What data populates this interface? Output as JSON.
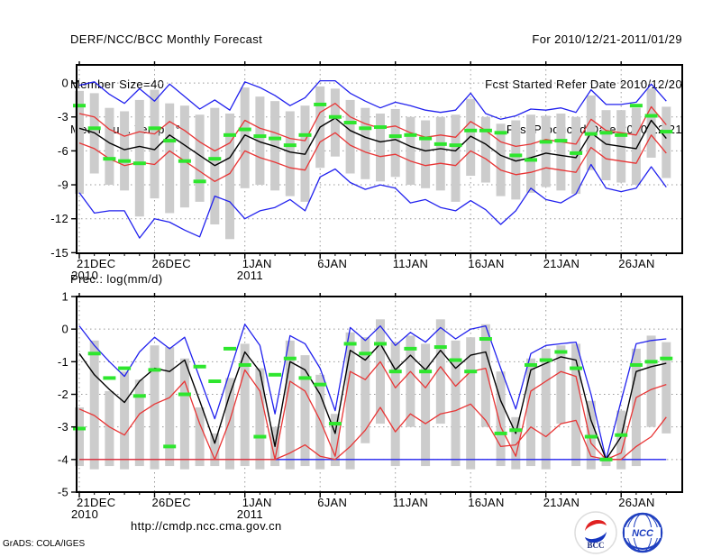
{
  "header": {
    "title": "DERF/NCC/BCC Monthly Forecast",
    "member_size": "Member Size=40",
    "temp_label": "Mean Surf. Temp.: °C",
    "for_period": "For 2010/12/21-2011/01/29",
    "fcst_start": "Fcst Started Refer Date 2010/12/20",
    "fcst_produced": "Fcst Produced Date 2010/12/21"
  },
  "precip_label": "Prec.: log(mm/d)",
  "footer": {
    "url": "http://cmdp.ncc.cma.gov.cn",
    "credit": "GrADS: COLA/IGES",
    "logo_bcc_text": "BCC",
    "logo_ncc_text": "NCC"
  },
  "colors": {
    "blue": "#2222ee",
    "red": "#e83535",
    "green": "#2ee62e",
    "black": "#000000",
    "gray": "#cccccc",
    "grid": "#999999",
    "text": "#000000",
    "logo_blue": "#2040c0",
    "logo_red": "#e02020"
  },
  "chart_data": [
    {
      "type": "line",
      "title": "Mean Surf. Temp.: °C",
      "ylabel": "°C",
      "n_points": 40,
      "ylim": [
        -15.05,
        1.6
      ],
      "y_ticks": [
        0,
        -3,
        -6,
        -9,
        -12,
        -15
      ],
      "grid": true,
      "x_ticks": [
        {
          "day": 0,
          "label": "21DEC",
          "year": "2010"
        },
        {
          "day": 5,
          "label": "26DEC"
        },
        {
          "day": 11,
          "label": "1JAN",
          "year": "2011"
        },
        {
          "day": 16,
          "label": "6JAN"
        },
        {
          "day": 21,
          "label": "11JAN"
        },
        {
          "day": 26,
          "label": "16JAN"
        },
        {
          "day": 31,
          "label": "21JAN"
        },
        {
          "day": 36,
          "label": "26JAN"
        }
      ],
      "bars": {
        "name": "member-spread",
        "color_key": "gray",
        "top": [
          -0.7,
          -0.9,
          -2.2,
          -2.5,
          -1.5,
          -0.6,
          -1.8,
          -2.0,
          -2.8,
          -2.2,
          -2.7,
          -0.4,
          -1.2,
          -1.6,
          -2.5,
          -2.0,
          -0.3,
          -0.5,
          -1.5,
          -2.2,
          -2.7,
          -2.3,
          -3.0,
          -3.3,
          -3.0,
          -2.8,
          -1.4,
          -3.0,
          -3.6,
          -3.3,
          -2.8,
          -2.9,
          -2.7,
          -3.0,
          -1.1,
          -2.4,
          -2.4,
          -2.2,
          -0.5,
          -2.1
        ],
        "bottom": [
          -9.8,
          -8.0,
          -9.0,
          -9.5,
          -11.8,
          -10.2,
          -11.5,
          -11.0,
          -10.5,
          -12.5,
          -13.8,
          -9.3,
          -9.0,
          -9.5,
          -10.0,
          -10.5,
          -7.5,
          -6.5,
          -8.0,
          -8.5,
          -8.7,
          -8.3,
          -9.0,
          -9.3,
          -9.5,
          -10.5,
          -8.2,
          -8.8,
          -10.0,
          -10.3,
          -9.7,
          -9.2,
          -9.5,
          -9.8,
          -7.7,
          -8.6,
          -8.8,
          -9.0,
          -6.6,
          -8.4
        ]
      },
      "series": [
        {
          "name": "ensemble-max",
          "color_key": "blue",
          "values": [
            -0.2,
            0.1,
            -1.0,
            -1.8,
            -0.5,
            -1.6,
            -0.1,
            -1.2,
            -2.3,
            -1.5,
            -2.4,
            0.1,
            -0.4,
            -1.1,
            -2.0,
            -1.3,
            0.2,
            0.2,
            -0.9,
            -1.6,
            -2.2,
            -1.7,
            -2.0,
            -2.4,
            -2.6,
            -2.4,
            -0.9,
            -2.7,
            -3.2,
            -2.9,
            -2.3,
            -2.4,
            -2.2,
            -2.6,
            -0.6,
            -1.9,
            -1.9,
            -1.7,
            -0.1,
            -1.6
          ]
        },
        {
          "name": "upper-spread",
          "color_key": "red",
          "values": [
            -2.7,
            -3.0,
            -4.1,
            -4.7,
            -4.3,
            -4.5,
            -3.4,
            -4.2,
            -5.2,
            -6.0,
            -5.3,
            -3.3,
            -4.0,
            -4.4,
            -4.9,
            -5.1,
            -2.6,
            -1.8,
            -3.0,
            -3.6,
            -4.0,
            -3.8,
            -4.4,
            -4.8,
            -4.6,
            -4.8,
            -3.4,
            -4.2,
            -5.2,
            -5.6,
            -5.4,
            -5.0,
            -5.2,
            -5.4,
            -3.2,
            -4.2,
            -4.4,
            -4.6,
            -2.1,
            -3.7
          ]
        },
        {
          "name": "lower-spread",
          "color_key": "red",
          "values": [
            -5.3,
            -5.8,
            -6.7,
            -7.3,
            -7.0,
            -7.2,
            -6.0,
            -6.9,
            -7.8,
            -8.7,
            -8.0,
            -6.0,
            -6.6,
            -7.0,
            -7.5,
            -7.7,
            -5.2,
            -4.4,
            -5.5,
            -6.1,
            -6.5,
            -6.3,
            -6.9,
            -7.3,
            -7.1,
            -7.3,
            -6.0,
            -6.7,
            -7.7,
            -8.1,
            -7.9,
            -7.5,
            -7.7,
            -7.9,
            -5.7,
            -6.7,
            -6.9,
            -7.1,
            -4.6,
            -6.2
          ]
        },
        {
          "name": "ensemble-min",
          "color_key": "blue",
          "values": [
            -9.7,
            -11.5,
            -11.3,
            -11.3,
            -13.7,
            -12.0,
            -12.3,
            -13.0,
            -13.6,
            -10.0,
            -10.5,
            -12.0,
            -11.3,
            -11.0,
            -10.3,
            -11.3,
            -8.3,
            -7.6,
            -8.8,
            -9.4,
            -9.0,
            -9.3,
            -10.6,
            -10.3,
            -11.0,
            -11.3,
            -10.4,
            -11.2,
            -12.5,
            -11.3,
            -9.3,
            -10.3,
            -10.6,
            -9.8,
            -7.2,
            -9.3,
            -9.6,
            -9.3,
            -7.4,
            -9.2
          ]
        },
        {
          "name": "ensemble-mean",
          "color_key": "black",
          "values": [
            -4.0,
            -4.4,
            -5.3,
            -5.9,
            -5.6,
            -5.9,
            -4.6,
            -5.5,
            -6.4,
            -7.3,
            -6.6,
            -4.6,
            -5.2,
            -5.6,
            -6.1,
            -6.3,
            -3.9,
            -3.1,
            -4.2,
            -4.8,
            -5.2,
            -5.0,
            -5.6,
            -6.0,
            -5.8,
            -6.0,
            -4.7,
            -5.4,
            -6.4,
            -6.9,
            -6.6,
            -6.2,
            -6.4,
            -6.6,
            -4.4,
            -5.4,
            -5.6,
            -5.8,
            -3.3,
            -4.9
          ]
        }
      ],
      "dashes": {
        "name": "observation",
        "color_key": "green",
        "values": [
          -2.0,
          -4.0,
          -6.7,
          -6.9,
          -7.1,
          -4.0,
          -5.1,
          -6.9,
          -8.7,
          -6.7,
          -4.6,
          -4.1,
          -4.7,
          -4.9,
          -5.5,
          -4.6,
          -1.9,
          -3.0,
          -3.5,
          -4.0,
          -3.9,
          -4.7,
          -4.6,
          -4.9,
          -5.4,
          -5.5,
          -4.2,
          -4.2,
          -4.4,
          -6.4,
          -6.8,
          -5.2,
          -5.1,
          -6.2,
          -4.5,
          -4.4,
          -4.6,
          -2.0,
          -2.9,
          -4.3
        ]
      }
    },
    {
      "type": "line",
      "title": "Prec.: log(mm/d)",
      "ylabel": "log(mm/d)",
      "n_points": 40,
      "ylim": [
        -5,
        1
      ],
      "y_ticks": [
        1,
        0,
        -1,
        -2,
        -3,
        -4,
        -5
      ],
      "grid": true,
      "x_ticks": [
        {
          "day": 0,
          "label": "21DEC",
          "year": "2010"
        },
        {
          "day": 5,
          "label": "26DEC"
        },
        {
          "day": 11,
          "label": "1JAN",
          "year": "2011"
        },
        {
          "day": 16,
          "label": "6JAN"
        },
        {
          "day": 21,
          "label": "11JAN"
        },
        {
          "day": 26,
          "label": "16JAN"
        },
        {
          "day": 31,
          "label": "21JAN"
        },
        {
          "day": 36,
          "label": "26JAN"
        }
      ],
      "bars": {
        "name": "member-spread",
        "color_key": "gray",
        "top": [
          -2.4,
          -0.35,
          -1.9,
          -1.3,
          -1.55,
          -0.5,
          -0.55,
          -0.9,
          -2.4,
          -3.2,
          -1.5,
          -0.45,
          -1.2,
          -3.0,
          -0.35,
          -0.8,
          -1.4,
          -2.6,
          -0.1,
          -0.25,
          0.3,
          -0.4,
          -0.2,
          -0.45,
          0.3,
          -0.35,
          -0.25,
          0.15,
          -1.3,
          -2.7,
          -0.9,
          -0.6,
          -0.5,
          -0.45,
          -2.2,
          -3.9,
          -2.5,
          -0.6,
          -0.2,
          -0.4
        ],
        "bottom": [
          -4.2,
          -4.3,
          -4.2,
          -4.3,
          -4.2,
          -4.3,
          -4.2,
          -4.3,
          -4.2,
          -4.2,
          -4.3,
          -4.2,
          -4.3,
          -4.2,
          -4.3,
          -4.2,
          -4.3,
          -4.2,
          -4.3,
          -3.5,
          -2.9,
          -4.2,
          -3.0,
          -4.2,
          -2.9,
          -4.2,
          -4.3,
          -3.0,
          -4.2,
          -4.3,
          -4.2,
          -4.3,
          -2.9,
          -4.2,
          -4.3,
          -4.2,
          -4.3,
          -4.2,
          -3.0,
          -3.2
        ]
      },
      "series": [
        {
          "name": "ensemble-max",
          "color_key": "blue",
          "values": [
            0.1,
            -0.5,
            -1.0,
            -1.45,
            -0.7,
            -0.25,
            -0.6,
            -0.25,
            -1.5,
            -2.75,
            -1.3,
            0.15,
            -0.5,
            -2.6,
            -0.2,
            -0.45,
            -1.2,
            -2.5,
            0.05,
            -0.35,
            0.1,
            -0.5,
            -0.1,
            -0.4,
            0.05,
            -0.3,
            0.0,
            0.1,
            -1.2,
            -2.45,
            -0.75,
            -0.5,
            -0.45,
            -0.4,
            -2.0,
            -4.0,
            -2.2,
            -0.45,
            -0.35,
            -0.3
          ]
        },
        {
          "name": "ensemble-min",
          "color_key": "blue",
          "values": [
            -4.0,
            -4.0,
            -4.0,
            -4.0,
            -4.0,
            -4.0,
            -4.0,
            -4.0,
            -4.0,
            -4.0,
            -4.0,
            -4.0,
            -4.0,
            -4.0,
            -4.0,
            -4.0,
            -4.0,
            -4.0,
            -4.0,
            -4.0,
            -4.0,
            -4.0,
            -4.0,
            -4.0,
            -4.0,
            -4.0,
            -4.0,
            -4.0,
            -4.0,
            -4.0,
            -4.0,
            -4.0,
            -4.0,
            -4.0,
            -4.0,
            -4.0,
            -4.0,
            -4.0,
            -4.0,
            -4.0
          ]
        },
        {
          "name": "upper-spread",
          "color_key": "red",
          "values": [
            -2.45,
            -2.65,
            -3.0,
            -3.25,
            -2.6,
            -2.3,
            -2.1,
            -1.6,
            -2.9,
            -4.0,
            -2.8,
            -1.25,
            -1.9,
            -4.0,
            -1.6,
            -1.9,
            -2.8,
            -3.9,
            -1.3,
            -1.55,
            -1.0,
            -1.8,
            -1.3,
            -1.8,
            -1.15,
            -1.75,
            -1.3,
            -1.2,
            -3.0,
            -3.9,
            -1.9,
            -1.6,
            -1.3,
            -1.45,
            -3.5,
            -4.0,
            -3.8,
            -2.1,
            -1.85,
            -1.7
          ]
        },
        {
          "name": "lower-spread",
          "color_key": "red",
          "values": [
            -4.0,
            -4.0,
            -4.0,
            -4.0,
            -4.0,
            -4.0,
            -4.0,
            -4.0,
            -4.0,
            -4.0,
            -4.0,
            -4.0,
            -4.0,
            -4.0,
            -3.8,
            -3.55,
            -3.9,
            -4.0,
            -3.6,
            -3.1,
            -2.4,
            -3.15,
            -2.6,
            -2.9,
            -2.6,
            -2.5,
            -2.3,
            -2.8,
            -3.6,
            -3.55,
            -3.0,
            -3.3,
            -2.9,
            -2.8,
            -3.9,
            -4.0,
            -4.0,
            -3.6,
            -3.3,
            -2.7
          ]
        },
        {
          "name": "ensemble-mean",
          "color_key": "black",
          "values": [
            -0.75,
            -1.4,
            -1.85,
            -2.25,
            -1.6,
            -1.2,
            -1.3,
            -0.95,
            -2.2,
            -3.5,
            -2.0,
            -0.7,
            -1.3,
            -3.6,
            -1.0,
            -1.25,
            -2.0,
            -3.2,
            -0.65,
            -0.95,
            -0.45,
            -1.25,
            -0.8,
            -1.25,
            -0.65,
            -1.2,
            -0.8,
            -0.7,
            -2.2,
            -3.2,
            -1.25,
            -1.05,
            -0.85,
            -0.95,
            -2.8,
            -4.0,
            -3.3,
            -1.3,
            -1.15,
            -1.05
          ]
        }
      ],
      "dashes": {
        "name": "observation",
        "color_key": "green",
        "values": [
          -3.05,
          -0.75,
          -1.5,
          -1.2,
          -2.05,
          -1.25,
          -3.6,
          -2.0,
          -1.15,
          -1.6,
          -0.6,
          -1.1,
          -3.3,
          -1.4,
          -0.9,
          -1.5,
          -1.7,
          -2.9,
          -0.45,
          -0.75,
          -0.45,
          -1.3,
          -0.6,
          -1.3,
          -0.55,
          -0.95,
          -1.3,
          -0.3,
          -3.2,
          -3.1,
          -1.1,
          -0.95,
          -0.7,
          -1.2,
          -3.3,
          -4.0,
          -3.25,
          -1.1,
          -1.0,
          -0.9
        ]
      }
    }
  ]
}
